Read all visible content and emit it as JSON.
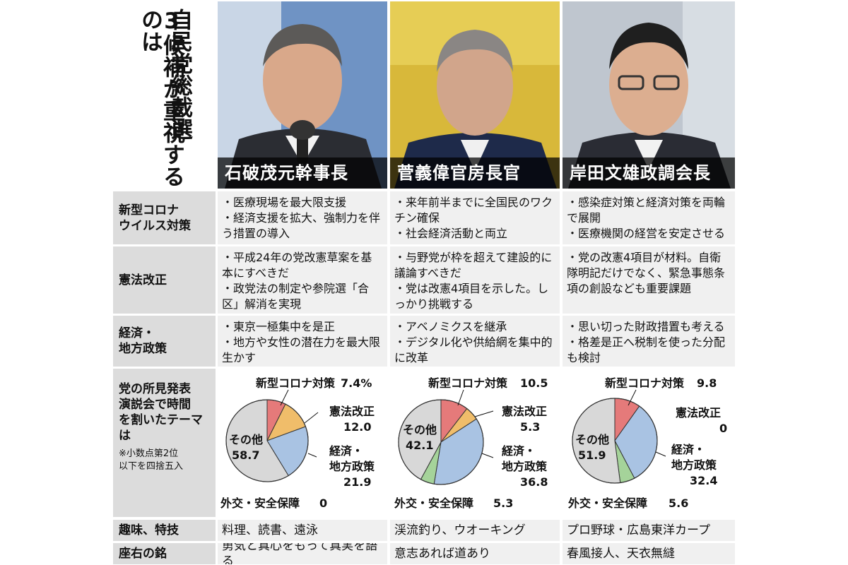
{
  "headline": {
    "line1": "自民党総裁選",
    "line2": "3候補が重視するのは"
  },
  "candidates": [
    {
      "name": "石破茂元幹事長"
    },
    {
      "name": "菅義偉官房長官"
    },
    {
      "name": "岸田文雄政調会長"
    }
  ],
  "rows": {
    "corona": {
      "label_lines": [
        "新型コロナ",
        "ウイルス対策"
      ],
      "cells": [
        [
          "・医療現場を最大限支援",
          "・経済支援を拡大、強制力を伴う措置の導入"
        ],
        [
          "・来年前半までに全国民のワクチン確保",
          "・社会経済活動と両立"
        ],
        [
          "・感染症対策と経済対策を両輪で展開",
          "・医療機関の経営を安定させる"
        ]
      ]
    },
    "constitution": {
      "label_lines": [
        "憲法改正"
      ],
      "cells": [
        [
          "・平成24年の党改憲草案を基本にすべきだ",
          "・政党法の制定や参院選「合区」解消を実現"
        ],
        [
          "・与野党が枠を超えて建設的に議論すべきだ",
          "・党は改憲4項目を示した。しっかり挑戦する"
        ],
        [
          "・党の改憲4項目が材料。自衛隊明記だけでなく、緊急事態条項の創設なども重要課題"
        ]
      ]
    },
    "economy": {
      "label_lines": [
        "経済・",
        "地方政策"
      ],
      "cells": [
        [
          "・東京一極集中を是正",
          "・地方や女性の潜在力を最大限生かす"
        ],
        [
          "・アベノミクスを継承",
          "・デジタル化や供給網を集中的に改革"
        ],
        [
          "・思い切った財政措置も考える",
          "・格差是正へ税制を使った分配も検討"
        ]
      ]
    },
    "speech": {
      "label_lines": [
        "党の所見発表",
        "演説会で時間",
        "を割いたテーマ",
        "は"
      ],
      "note_lines": [
        "※小数点第2位",
        "以下を四捨五入"
      ]
    },
    "hobby": {
      "label": "趣味、特技",
      "cells": [
        "料理、読書、遠泳",
        "渓流釣り、ウオーキング",
        "プロ野球・広島東洋カープ"
      ]
    },
    "motto": {
      "label": "座右の銘",
      "cells": [
        "勇気と真心をもって真実を語る",
        "意志あれば道あり",
        "春風接人、天衣無縫"
      ]
    }
  },
  "chart_data": [
    {
      "type": "pie",
      "candidate": "石破茂元幹事長",
      "slices": [
        {
          "label": "新型コロナ対策",
          "value": 7.4,
          "value_text": "7.4%",
          "color": "#e57a7a"
        },
        {
          "label": "憲法改正",
          "value": 12.0,
          "value_text": "12.0",
          "color": "#f0bd6a"
        },
        {
          "label_lines": [
            "経済・",
            "地方政策"
          ],
          "value": 21.9,
          "value_text": "21.9",
          "color": "#a9c3e3"
        },
        {
          "label": "外交・安全保障",
          "value": 0,
          "value_text": "0",
          "color": "#a5d39a"
        },
        {
          "label": "その他",
          "value": 58.7,
          "value_text": "58.7",
          "color": "#d8d8d8"
        }
      ]
    },
    {
      "type": "pie",
      "candidate": "菅義偉官房長官",
      "slices": [
        {
          "label": "新型コロナ対策",
          "value": 10.5,
          "value_text": "10.5",
          "color": "#e57a7a"
        },
        {
          "label": "憲法改正",
          "value": 5.3,
          "value_text": "5.3",
          "color": "#f0bd6a"
        },
        {
          "label_lines": [
            "経済・",
            "地方政策"
          ],
          "value": 36.8,
          "value_text": "36.8",
          "color": "#a9c3e3"
        },
        {
          "label": "外交・安全保障",
          "value": 5.3,
          "value_text": "5.3",
          "color": "#a5d39a"
        },
        {
          "label": "その他",
          "value": 42.1,
          "value_text": "42.1",
          "color": "#d8d8d8"
        }
      ]
    },
    {
      "type": "pie",
      "candidate": "岸田文雄政調会長",
      "slices": [
        {
          "label": "新型コロナ対策",
          "value": 9.8,
          "value_text": "9.8",
          "color": "#e57a7a"
        },
        {
          "label": "憲法改正",
          "value": 0,
          "value_text": "0",
          "color": "#f0bd6a"
        },
        {
          "label_lines": [
            "経済・",
            "地方政策"
          ],
          "value": 32.4,
          "value_text": "32.4",
          "color": "#a9c3e3"
        },
        {
          "label": "外交・安全保障",
          "value": 5.6,
          "value_text": "5.6",
          "color": "#a5d39a"
        },
        {
          "label": "その他",
          "value": 51.9,
          "value_text": "51.9",
          "color": "#d8d8d8"
        }
      ]
    }
  ]
}
